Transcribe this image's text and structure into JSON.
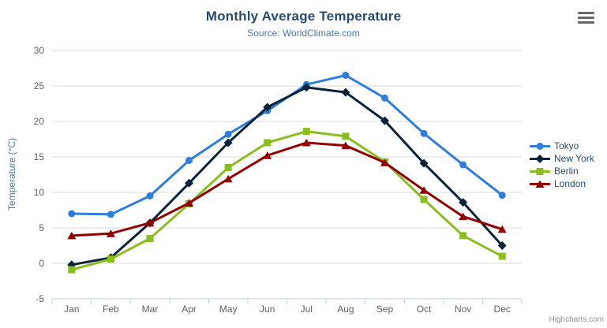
{
  "chart_data": {
    "type": "line",
    "title": "Monthly Average Temperature",
    "subtitle": "Source: WorldClimate.com",
    "categories": [
      "Jan",
      "Feb",
      "Mar",
      "Apr",
      "May",
      "Jun",
      "Jul",
      "Aug",
      "Sep",
      "Oct",
      "Nov",
      "Dec"
    ],
    "series": [
      {
        "name": "Tokyo",
        "color": "#2f7ed8",
        "marker": "circle",
        "values": [
          7.0,
          6.9,
          9.5,
          14.5,
          18.2,
          21.5,
          25.2,
          26.5,
          23.3,
          18.3,
          13.9,
          9.6
        ]
      },
      {
        "name": "New York",
        "color": "#0d233a",
        "marker": "diamond",
        "values": [
          -0.2,
          0.8,
          5.7,
          11.3,
          17.0,
          22.0,
          24.8,
          24.1,
          20.1,
          14.1,
          8.6,
          2.5
        ]
      },
      {
        "name": "Berlin",
        "color": "#8bbc21",
        "marker": "square",
        "values": [
          -0.9,
          0.6,
          3.5,
          8.4,
          13.5,
          17.0,
          18.6,
          17.9,
          14.3,
          9.0,
          3.9,
          1.0
        ]
      },
      {
        "name": "London",
        "color": "#910000",
        "marker": "triangle",
        "values": [
          3.9,
          4.2,
          5.7,
          8.5,
          11.9,
          15.2,
          17.0,
          16.6,
          14.2,
          10.3,
          6.6,
          4.8
        ]
      }
    ],
    "xlabel": "",
    "ylabel": "Temperature (°C)",
    "ylim": [
      -5,
      30
    ],
    "yticks": [
      -5,
      0,
      5,
      10,
      15,
      20,
      25,
      30
    ],
    "grid": true,
    "legend_position": "right",
    "legend": [
      "Tokyo",
      "New York",
      "Berlin",
      "London"
    ]
  },
  "export_menu": {
    "icon": "hamburger-menu-icon"
  },
  "credit": {
    "label": "Highcharts.com"
  },
  "colors": {
    "title": "#274b6d",
    "subtitle": "#4d759e",
    "axis_title": "#4d759e",
    "tick_label": "#606060",
    "gridline": "#d8d8d8",
    "axis_line": "#c0d0e0",
    "legend_text": "#274b6d",
    "credit": "#909090",
    "background": "#ffffff"
  }
}
